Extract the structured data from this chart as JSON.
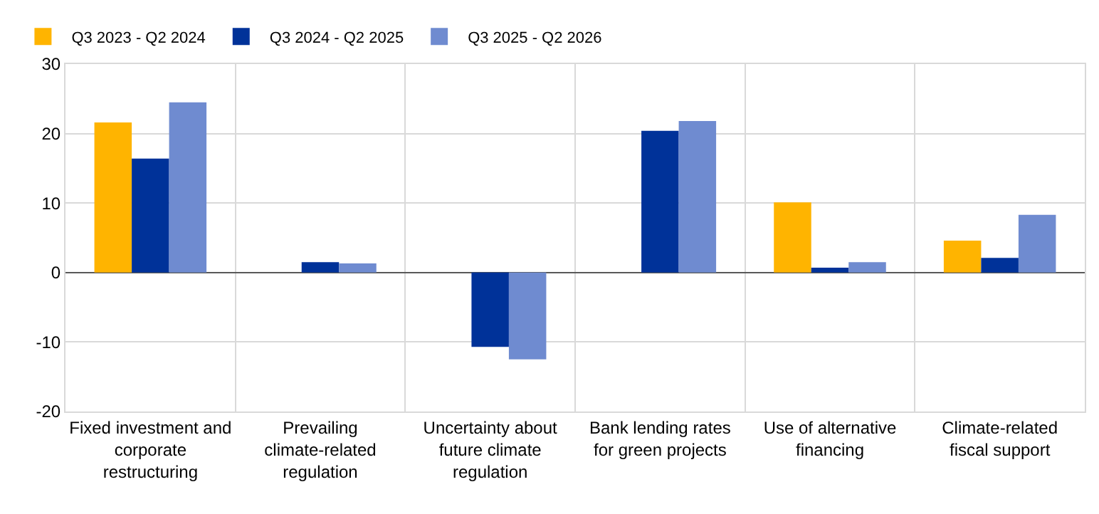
{
  "chart_data": {
    "type": "bar",
    "categories": [
      "Fixed investment and corporate restructuring",
      "Prevailing climate-related regulation",
      "Uncertainty about future climate regulation",
      "Bank lending rates for green projects",
      "Use of alternative financing",
      "Climate-related fiscal support"
    ],
    "series": [
      {
        "name": "Q3 2023 - Q2 2024",
        "color": "#ffb400",
        "values": [
          21.6,
          null,
          null,
          null,
          10.1,
          4.6
        ]
      },
      {
        "name": "Q3 2024 - Q2 2025",
        "color": "#003299",
        "values": [
          16.4,
          1.5,
          -10.7,
          20.4,
          0.7,
          2.1
        ]
      },
      {
        "name": "Q3 2025 - Q2 2026",
        "color": "#6f8bd0",
        "values": [
          24.5,
          1.3,
          -12.5,
          21.8,
          1.5,
          8.3
        ]
      }
    ],
    "ylim": [
      -20,
      30
    ],
    "yticks": [
      -20,
      -10,
      0,
      10,
      20,
      30
    ],
    "grid": true,
    "legend": "top left"
  }
}
